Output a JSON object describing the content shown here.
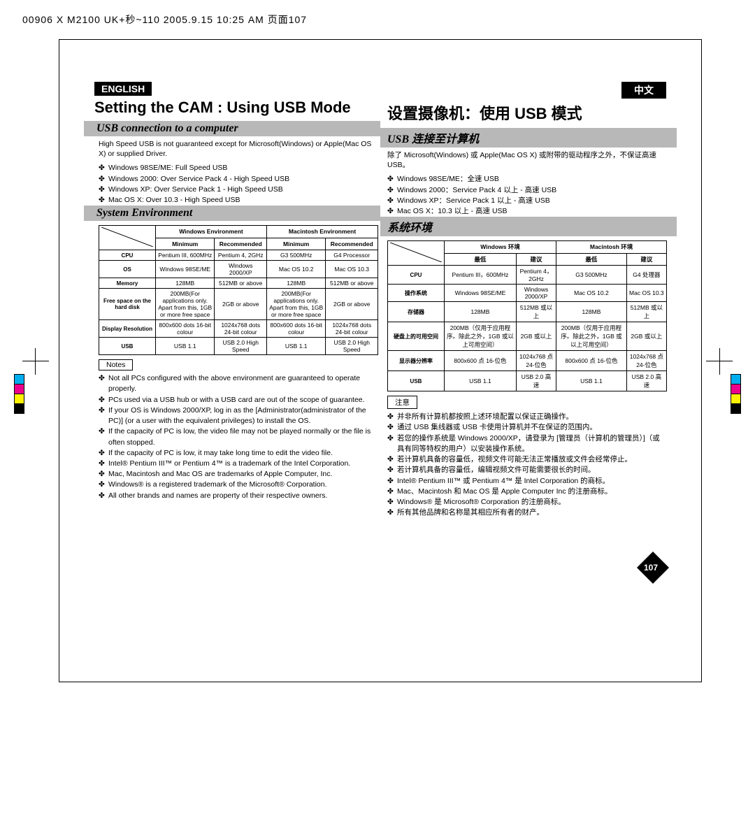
{
  "header_crop": "00906 X M2100 UK+秒~110  2005.9.15 10:25 AM  页面107",
  "left": {
    "lang": "ENGLISH",
    "title": "Setting the CAM : Using USB Mode",
    "sub1": "USB connection to a computer",
    "intro": "High Speed USB is not guaranteed except for Microsoft(Windows) or Apple(Mac OS X) or supplied Driver.",
    "list1": [
      "Windows 98SE/ME: Full Speed USB",
      "Windows 2000: Over Service Pack 4 - High Speed USB",
      "Windows XP: Over Service Pack 1 - High Speed USB",
      "Mac OS X: Over 10.3 - High Speed USB"
    ],
    "sub2": "System Environment",
    "table": {
      "env1": "Windows Environment",
      "env2": "Macintosh Environment",
      "min": "Minimum",
      "rec": "Recommended",
      "rows": [
        [
          "CPU",
          "Pentium III, 600MHz",
          "Pentium 4, 2GHz",
          "G3 500MHz",
          "G4 Processor"
        ],
        [
          "OS",
          "Windows 98SE/ME",
          "Windows 2000/XP",
          "Mac OS 10.2",
          "Mac OS 10.3"
        ],
        [
          "Memory",
          "128MB",
          "512MB or above",
          "128MB",
          "512MB or above"
        ],
        [
          "Free space on the hard disk",
          "200MB(For applications only. Apart from this, 1GB or more free space",
          "2GB or above",
          "200MB(For applications only. Apart from this, 1GB or more free space",
          "2GB or above"
        ],
        [
          "Display Resolution",
          "800x600 dots 16-bit colour",
          "1024x768 dots 24-bit colour",
          "800x600 dots 16-bit colour",
          "1024x768 dots 24-bit colour"
        ],
        [
          "USB",
          "USB 1.1",
          "USB 2.0 High Speed",
          "USB 1.1",
          "USB 2.0 High Speed"
        ]
      ]
    },
    "notes_label": "Notes",
    "notes": [
      "Not all PCs configured with the above environment are guaranteed to operate properly.",
      "PCs used via a USB hub or with a USB card are out of the scope of guarantee.",
      "If your OS is Windows 2000/XP, log in as the [Administrator(administrator of the PC)] (or a user with the equivalent privileges) to install the OS.",
      "If the capacity of PC is low, the video file may not be played normally or the file is often stopped.",
      "If the capacity of PC is low, it may take long time to edit the video file.",
      "Intel® Pentium III™ or Pentium 4™ is a trademark of the Intel Corporation.",
      "Mac, Macintosh and Mac OS are trademarks of Apple Computer, Inc.",
      "Windows® is a registered trademark of the Microsoft® Corporation.",
      "All other brands and names are property of their respective owners."
    ]
  },
  "right": {
    "lang": "中文",
    "title": "设置摄像机：使用 USB 模式",
    "sub1": "USB 连接至计算机",
    "intro": "除了 Microsoft(Windows) 或 Apple(Mac OS X) 或附带的驱动程序之外，不保证高速 USB。",
    "list1": [
      "Windows 98SE/ME：全速 USB",
      "Windows 2000：Service Pack 4 以上 - 高速 USB",
      "Windows XP：Service Pack 1 以上 - 高速 USB",
      "Mac OS X：10.3 以上 - 高速 USB"
    ],
    "sub2": "系统环境",
    "table": {
      "env1": "Windows 环境",
      "env2": "Macintosh 环境",
      "min": "最低",
      "rec": "建议",
      "rows": [
        [
          "CPU",
          "Pentium III，600MHz",
          "Pentium 4，2GHz",
          "G3 500MHz",
          "G4 处理器"
        ],
        [
          "操作系统",
          "Windows 98SE/ME",
          "Windows 2000/XP",
          "Mac OS 10.2",
          "Mac OS 10.3"
        ],
        [
          "存储器",
          "128MB",
          "512MB 或以上",
          "128MB",
          "512MB 或以上"
        ],
        [
          "硬盘上的可用空间",
          "200MB（仅用于应用程序。除此之外，1GB 或以上可用空间）",
          "2GB 或以上",
          "200MB（仅用于应用程序。除此之外，1GB 或以上可用空间）",
          "2GB 或以上"
        ],
        [
          "显示器分辨率",
          "800x600 点 16-位色",
          "1024x768 点 24-位色",
          "800x600 点 16-位色",
          "1024x768 点 24-位色"
        ],
        [
          "USB",
          "USB 1.1",
          "USB 2.0 高速",
          "USB 1.1",
          "USB 2.0 高速"
        ]
      ]
    },
    "notes_label": "注意",
    "notes": [
      "并非所有计算机都按照上述环境配置以保证正确操作。",
      "通过 USB 集线器或 USB 卡使用计算机并不在保证的范围内。",
      "若您的操作系统是 Windows 2000/XP，请登录为 [管理员（计算机的管理员）]（或具有同等特权的用户）以安装操作系统。",
      "若计算机具备的容量低，视频文件可能无法正常播放或文件会经常停止。",
      "若计算机具备的容量低，编辑视频文件可能需要很长的时间。",
      "Intel® Pentium III™ 或 Pentium 4™ 是 Intel Corporation 的商标。",
      "Mac、Macintosh 和 Mac OS 是 Apple Computer Inc 的注册商标。",
      "Windows® 是 Microsoft® Corporation 的注册商标。",
      "所有其他品牌和名称是其相应所有者的财产。"
    ]
  },
  "page_number": "107",
  "colors": {
    "subhead_bg": "#b8b8b8",
    "black": "#000000",
    "white": "#ffffff"
  }
}
